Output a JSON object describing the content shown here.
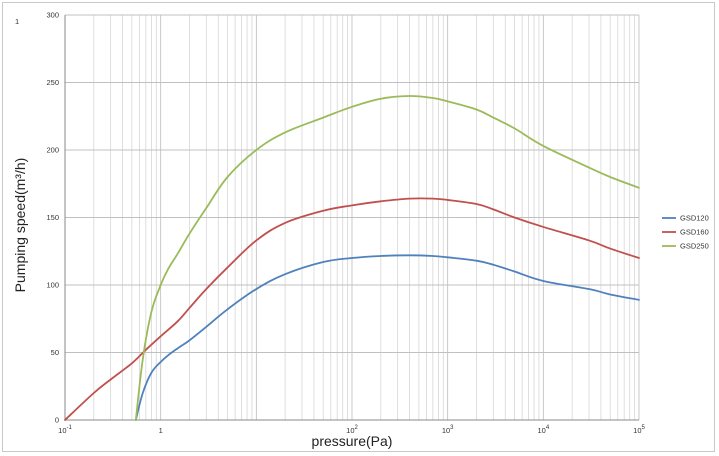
{
  "corner_mark": "1",
  "chart_data": {
    "type": "line",
    "title": "",
    "xlabel": "pressure(Pa)",
    "ylabel": "Pumping speed(m³/h)",
    "xscale": "log",
    "xlim": [
      0.1,
      100000
    ],
    "ylim": [
      0,
      300
    ],
    "yticks": [
      0,
      50,
      100,
      150,
      200,
      250,
      300
    ],
    "xticks": [
      {
        "value": 0.1,
        "base": "10",
        "exp": "-1"
      },
      {
        "value": 1,
        "base": "1",
        "exp": ""
      },
      {
        "value": 100,
        "base": "10",
        "exp": "2"
      },
      {
        "value": 1000,
        "base": "10",
        "exp": "3"
      },
      {
        "value": 10000,
        "base": "10",
        "exp": "4"
      },
      {
        "value": 100000,
        "base": "10",
        "exp": "5"
      }
    ],
    "grid": true,
    "legend_position": "right",
    "series": [
      {
        "name": "GSD120",
        "color": "#4f81bd",
        "x": [
          0.55,
          0.65,
          0.8,
          1.0,
          1.2,
          1.5,
          2,
          3,
          5,
          10,
          20,
          50,
          100,
          200,
          400,
          700,
          1000,
          2000,
          3000,
          5000,
          10000,
          30000,
          50000,
          100000
        ],
        "y": [
          0,
          20,
          35,
          43,
          48,
          53,
          59,
          69,
          82,
          97,
          108,
          117,
          120,
          121.5,
          122,
          121.5,
          120.5,
          118,
          115,
          110,
          103,
          97,
          93,
          89
        ]
      },
      {
        "name": "GSD160",
        "color": "#c0504d",
        "x": [
          0.1,
          0.2,
          0.3,
          0.5,
          0.7,
          1.0,
          1.5,
          2,
          3,
          5,
          10,
          20,
          50,
          100,
          200,
          400,
          700,
          1000,
          2000,
          3000,
          5000,
          10000,
          30000,
          50000,
          100000
        ],
        "y": [
          0,
          20,
          30,
          42,
          52,
          62,
          73,
          83,
          97,
          113,
          133,
          146,
          155,
          159,
          162,
          164,
          164,
          163,
          160,
          156,
          150,
          143,
          133,
          127,
          120
        ]
      },
      {
        "name": "GSD250",
        "color": "#9bbb59",
        "x": [
          0.55,
          0.65,
          0.8,
          1.0,
          1.2,
          1.5,
          2,
          3,
          5,
          10,
          20,
          50,
          100,
          200,
          400,
          700,
          1000,
          2000,
          3000,
          5000,
          10000,
          30000,
          50000,
          100000
        ],
        "y": [
          0,
          45,
          80,
          100,
          112,
          123,
          138,
          157,
          180,
          200,
          213,
          224,
          232,
          238,
          240,
          238.5,
          236,
          230,
          224,
          216,
          203,
          187,
          180,
          172
        ]
      }
    ]
  }
}
